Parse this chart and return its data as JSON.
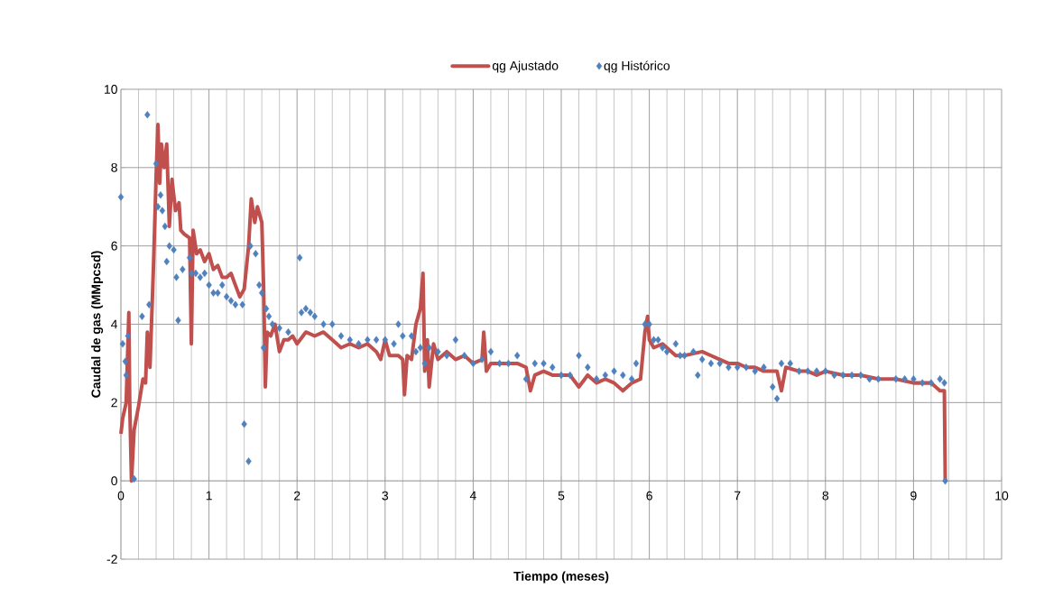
{
  "chart_data": {
    "type": "line",
    "xlabel": "Tiempo (meses)",
    "ylabel": "Caudal de gas (MMpcsd)",
    "xlim": [
      0,
      10
    ],
    "ylim": [
      -2,
      10
    ],
    "xticks": [
      0,
      1,
      2,
      3,
      4,
      5,
      6,
      7,
      8,
      9,
      10
    ],
    "yticks": [
      -2,
      0,
      2,
      4,
      6,
      8,
      10
    ],
    "grid": true,
    "legend": "top",
    "series": [
      {
        "name": "qg Ajustado",
        "type": "line",
        "color": "#c0504d",
        "marker": "none",
        "x": [
          0,
          0.02,
          0.06,
          0.09,
          0.1,
          0.12,
          0.15,
          0.2,
          0.25,
          0.28,
          0.3,
          0.33,
          0.37,
          0.4,
          0.42,
          0.44,
          0.46,
          0.49,
          0.52,
          0.55,
          0.58,
          0.62,
          0.66,
          0.68,
          0.72,
          0.78,
          0.8,
          0.82,
          0.86,
          0.9,
          0.95,
          1.0,
          1.05,
          1.1,
          1.15,
          1.2,
          1.25,
          1.3,
          1.35,
          1.4,
          1.45,
          1.48,
          1.52,
          1.55,
          1.6,
          1.62,
          1.64,
          1.66,
          1.7,
          1.75,
          1.8,
          1.85,
          1.9,
          1.95,
          2.0,
          2.1,
          2.2,
          2.3,
          2.4,
          2.5,
          2.6,
          2.7,
          2.8,
          2.9,
          2.95,
          3.0,
          3.05,
          3.15,
          3.2,
          3.22,
          3.25,
          3.3,
          3.35,
          3.4,
          3.43,
          3.45,
          3.48,
          3.5,
          3.55,
          3.6,
          3.7,
          3.8,
          3.9,
          4.0,
          4.1,
          4.12,
          4.15,
          4.2,
          4.3,
          4.4,
          4.5,
          4.6,
          4.65,
          4.7,
          4.8,
          4.9,
          5.0,
          5.1,
          5.2,
          5.3,
          5.4,
          5.5,
          5.6,
          5.7,
          5.8,
          5.9,
          5.95,
          5.98,
          6.0,
          6.05,
          6.15,
          6.3,
          6.4,
          6.6,
          6.7,
          6.8,
          6.9,
          7.0,
          7.1,
          7.2,
          7.3,
          7.35,
          7.45,
          7.5,
          7.55,
          7.7,
          7.8,
          7.9,
          8.0,
          8.2,
          8.4,
          8.6,
          8.8,
          9.0,
          9.2,
          9.3,
          9.35,
          9.36
        ],
        "values": [
          1.2,
          1.6,
          2.0,
          4.3,
          2.0,
          0.0,
          1.3,
          1.9,
          2.6,
          2.5,
          3.8,
          2.9,
          5.5,
          7.8,
          9.1,
          7.6,
          8.6,
          8.0,
          8.6,
          6.5,
          7.7,
          6.9,
          7.1,
          6.4,
          6.3,
          6.2,
          3.5,
          6.4,
          5.8,
          5.9,
          5.6,
          5.8,
          5.4,
          5.5,
          5.2,
          5.2,
          5.3,
          5.0,
          4.7,
          4.9,
          6.0,
          7.2,
          6.6,
          7.0,
          6.6,
          5.0,
          2.4,
          3.8,
          3.7,
          4.0,
          3.3,
          3.6,
          3.6,
          3.7,
          3.5,
          3.8,
          3.7,
          3.8,
          3.6,
          3.4,
          3.5,
          3.4,
          3.5,
          3.3,
          3.1,
          3.6,
          3.2,
          3.2,
          3.1,
          2.2,
          3.2,
          3.1,
          4.0,
          4.4,
          5.3,
          2.8,
          3.6,
          2.4,
          3.5,
          3.1,
          3.3,
          3.1,
          3.2,
          3.0,
          3.1,
          3.8,
          2.8,
          3.0,
          3.0,
          3.0,
          3.0,
          2.9,
          2.3,
          2.7,
          2.8,
          2.7,
          2.7,
          2.7,
          2.4,
          2.7,
          2.5,
          2.6,
          2.5,
          2.3,
          2.5,
          2.6,
          3.8,
          4.2,
          3.6,
          3.4,
          3.5,
          3.2,
          3.2,
          3.3,
          3.2,
          3.1,
          3.0,
          3.0,
          2.9,
          2.9,
          2.8,
          2.8,
          2.8,
          2.3,
          2.9,
          2.8,
          2.8,
          2.7,
          2.8,
          2.7,
          2.7,
          2.6,
          2.6,
          2.5,
          2.5,
          2.3,
          2.3,
          0.0
        ]
      },
      {
        "name": "qg Histórico",
        "type": "scatter",
        "color": "#4f81bd",
        "marker": "diamond",
        "x": [
          0,
          0.02,
          0.05,
          0.06,
          0.08,
          0.15,
          0.24,
          0.3,
          0.32,
          0.4,
          0.42,
          0.45,
          0.47,
          0.5,
          0.52,
          0.55,
          0.6,
          0.63,
          0.65,
          0.7,
          0.78,
          0.8,
          0.85,
          0.9,
          0.95,
          1.0,
          1.05,
          1.1,
          1.15,
          1.2,
          1.25,
          1.3,
          1.38,
          1.4,
          1.45,
          1.47,
          1.53,
          1.57,
          1.6,
          1.62,
          1.65,
          1.68,
          1.72,
          1.8,
          1.9,
          2.03,
          2.05,
          2.1,
          2.15,
          2.2,
          2.3,
          2.4,
          2.5,
          2.6,
          2.7,
          2.8,
          2.9,
          3.0,
          3.1,
          3.15,
          3.2,
          3.3,
          3.35,
          3.4,
          3.45,
          3.5,
          3.6,
          3.7,
          3.8,
          3.9,
          4.0,
          4.1,
          4.2,
          4.3,
          4.4,
          4.5,
          4.6,
          4.7,
          4.8,
          4.9,
          5.0,
          5.1,
          5.2,
          5.3,
          5.4,
          5.5,
          5.6,
          5.7,
          5.8,
          5.85,
          5.95,
          6.0,
          6.05,
          6.1,
          6.15,
          6.2,
          6.3,
          6.35,
          6.4,
          6.5,
          6.55,
          6.6,
          6.7,
          6.8,
          6.9,
          7.0,
          7.1,
          7.2,
          7.3,
          7.4,
          7.45,
          7.5,
          7.6,
          7.7,
          7.8,
          7.9,
          8.0,
          8.1,
          8.2,
          8.3,
          8.4,
          8.5,
          8.6,
          8.8,
          8.9,
          9.0,
          9.1,
          9.2,
          9.3,
          9.35,
          9.36
        ],
        "values": [
          7.25,
          3.5,
          3.05,
          2.7,
          3.7,
          0.05,
          4.2,
          9.35,
          4.5,
          8.1,
          7.0,
          7.3,
          6.9,
          6.5,
          5.6,
          6.0,
          5.9,
          5.2,
          4.1,
          5.4,
          5.7,
          5.3,
          5.3,
          5.2,
          5.3,
          5.0,
          4.8,
          4.8,
          5.0,
          4.7,
          4.6,
          4.5,
          4.5,
          1.45,
          0.5,
          6.0,
          5.8,
          5.0,
          4.8,
          3.4,
          4.4,
          4.2,
          4.0,
          3.9,
          3.8,
          5.7,
          4.3,
          4.4,
          4.3,
          4.2,
          4.0,
          4.0,
          3.7,
          3.6,
          3.5,
          3.6,
          3.6,
          3.6,
          3.5,
          4.0,
          3.7,
          3.7,
          3.3,
          3.4,
          3.0,
          3.4,
          3.3,
          3.2,
          3.6,
          3.2,
          3.0,
          3.1,
          3.3,
          3.0,
          3.0,
          3.2,
          2.6,
          3.0,
          3.0,
          2.9,
          2.7,
          2.7,
          3.2,
          2.9,
          2.6,
          2.7,
          2.8,
          2.7,
          2.6,
          3.0,
          4.0,
          4.0,
          3.6,
          3.6,
          3.4,
          3.3,
          3.5,
          3.2,
          3.2,
          3.3,
          2.7,
          3.1,
          3.0,
          3.0,
          2.9,
          2.9,
          2.9,
          2.8,
          2.9,
          2.4,
          2.1,
          3.0,
          3.0,
          2.8,
          2.8,
          2.8,
          2.8,
          2.7,
          2.7,
          2.7,
          2.7,
          2.6,
          2.6,
          2.6,
          2.6,
          2.6,
          2.5,
          2.5,
          2.6,
          2.5,
          0.0
        ]
      }
    ]
  }
}
